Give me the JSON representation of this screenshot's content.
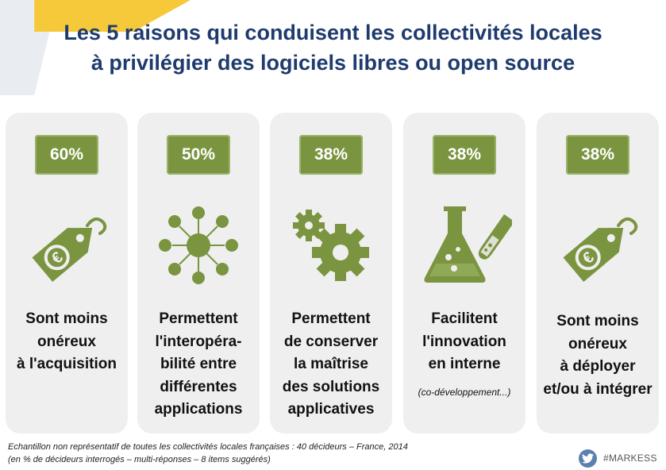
{
  "title": {
    "line1": "Les 5 raisons qui conduisent les collectivités locales",
    "line2": "à privilégier des logiciels libres ou open source"
  },
  "colors": {
    "title": "#1f3b6e",
    "accent_green": "#7a9440",
    "card_bg": "#efefef"
  },
  "cards": [
    {
      "percent": "60%",
      "icon": "euro-tag-icon",
      "lines": [
        "Sont moins",
        "onéreux",
        "à l'acquisition"
      ]
    },
    {
      "percent": "50%",
      "icon": "network-icon",
      "lines": [
        "Permettent",
        "l'interopéra-",
        "bilité entre",
        "différentes",
        "applications"
      ]
    },
    {
      "percent": "38%",
      "icon": "gears-icon",
      "lines": [
        "Permettent",
        "de conserver",
        "la maîtrise",
        "des solutions",
        "applicatives"
      ]
    },
    {
      "percent": "38%",
      "icon": "flask-icon",
      "lines": [
        "Facilitent",
        "l'innovation",
        "en interne"
      ],
      "note": "(co-développement...)"
    },
    {
      "percent": "38%",
      "icon": "euro-tag-icon",
      "lines": [
        "Sont moins",
        "onéreux",
        "à déployer",
        "et/ou à intégrer"
      ]
    }
  ],
  "footer": {
    "line1": "Echantillon non représentatif de toutes les collectivités locales françaises : 40 décideurs – France, 2014",
    "line2": "(en % de décideurs interrogés – multi-réponses – 8 items suggérés)",
    "hashtag": "#MARKESS",
    "social_icon": "twitter-icon"
  }
}
